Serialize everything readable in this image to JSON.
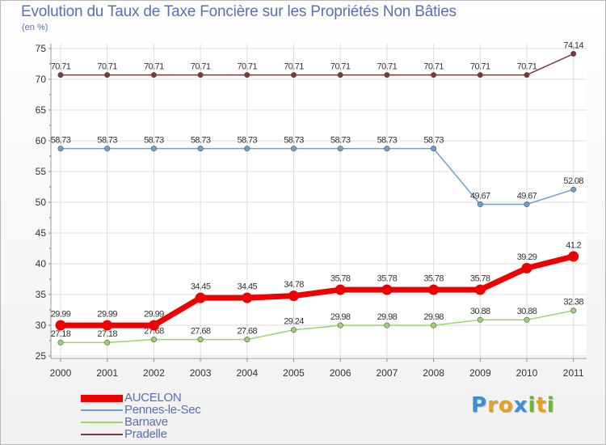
{
  "chart_data": {
    "type": "line",
    "title": "Evolution du Taux de Taxe Foncière sur les Propriétés Non Bâties",
    "unit": "(en %)",
    "xlabel": "",
    "ylabel": "(en %)",
    "ylim": [
      25,
      75
    ],
    "yticks": [
      25,
      30,
      35,
      40,
      45,
      50,
      55,
      60,
      65,
      70,
      75
    ],
    "categories": [
      "2000",
      "2001",
      "2002",
      "2003",
      "2004",
      "2005",
      "2006",
      "2007",
      "2008",
      "2009",
      "2010",
      "2011"
    ],
    "series": [
      {
        "name": "Pradelle",
        "color": "#7a3a3a",
        "values": [
          70.71,
          70.71,
          70.71,
          70.71,
          70.71,
          70.71,
          70.71,
          70.71,
          70.71,
          70.71,
          70.71,
          74.14
        ],
        "labels": [
          "70.71",
          "70.71",
          "70.71",
          "70.71",
          "70.71",
          "70.71",
          "70.71",
          "70.71",
          "70.71",
          "70.71",
          "70.71",
          "74.14"
        ]
      },
      {
        "name": "Pennes-le-Sec",
        "color": "#6ea0d4",
        "values": [
          58.73,
          58.73,
          58.73,
          58.73,
          58.73,
          58.73,
          58.73,
          58.73,
          58.73,
          49.67,
          49.67,
          52.08
        ],
        "labels": [
          "58.73",
          "58.73",
          "58.73",
          "58.73",
          "58.73",
          "58.73",
          "58.73",
          "58.73",
          "58.73",
          "49.67",
          "49.67",
          "52.08"
        ]
      },
      {
        "name": "Barnave",
        "color": "#9ad46e",
        "values": [
          27.18,
          27.18,
          27.68,
          27.68,
          27.68,
          29.24,
          29.98,
          29.98,
          29.98,
          30.88,
          30.88,
          32.38
        ],
        "labels": [
          "27.18",
          "27.18",
          "27.68",
          "27.68",
          "27.68",
          "29.24",
          "29.98",
          "29.98",
          "29.98",
          "30.88",
          "30.88",
          "32.38"
        ]
      },
      {
        "name": "AUCELON",
        "color": "#ee0000",
        "values": [
          29.99,
          29.99,
          29.99,
          34.45,
          34.45,
          34.78,
          35.78,
          35.78,
          35.78,
          35.78,
          39.29,
          41.2
        ],
        "labels": [
          "29.99",
          "29.99",
          "29.99",
          "34.45",
          "34.45",
          "34.78",
          "35.78",
          "35.78",
          "35.78",
          "35.78",
          "39.29",
          "41.2"
        ]
      }
    ],
    "legend": [
      "AUCELON",
      "Pennes-le-Sec",
      "Barnave",
      "Pradelle"
    ],
    "legend_position": "bottom-left"
  },
  "logo": {
    "letters": [
      "P",
      "r",
      "o",
      "x",
      "i",
      "t",
      "i"
    ],
    "colors": [
      "#3a8fd8",
      "#e8a020",
      "#e8a020",
      "#3a8fd8",
      "#6ab82e",
      "#e8a020",
      "#6ab82e"
    ]
  }
}
